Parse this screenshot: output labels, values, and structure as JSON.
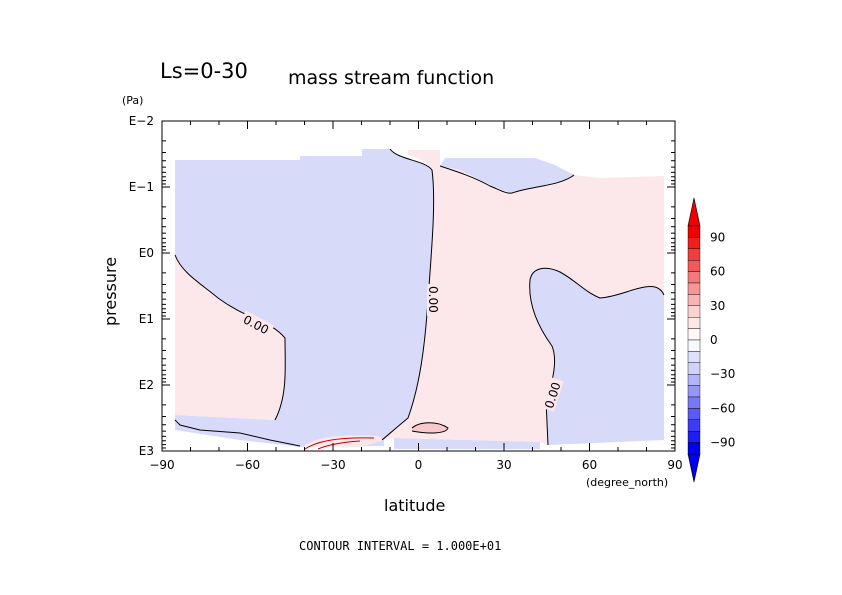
{
  "chart_data": {
    "type": "contour",
    "title_left": "Ls=0-30",
    "title": "mass stream function",
    "xlabel": "latitude",
    "x_unit": "(degree_north)",
    "ylabel": "pressure",
    "y_unit": "(Pa)",
    "x_ticks": [
      -90,
      -60,
      -30,
      0,
      30,
      60,
      90
    ],
    "x_tick_labels": [
      "−90",
      "−60",
      "−30",
      "0",
      "30",
      "60",
      "90"
    ],
    "xlim": [
      -90,
      90
    ],
    "y_scale": "log",
    "y_ticks": [
      0.01,
      0.1,
      1,
      10,
      100,
      1000
    ],
    "y_tick_labels": [
      "E−2",
      "E−1",
      "E0",
      "E1",
      "E2",
      "E3"
    ],
    "ylim": [
      0.01,
      1000
    ],
    "y_direction": "increasing-down",
    "contour_labels": [
      "0.00",
      "0.00",
      "0.00"
    ],
    "contour_interval_text": "CONTOUR INTERVAL = 1.000E+01",
    "colorbar": {
      "labels": [
        "90",
        "60",
        "30",
        "0",
        "−30",
        "−60",
        "−90"
      ],
      "levels": [
        -100,
        -90,
        -80,
        -70,
        -60,
        -50,
        -40,
        -30,
        -20,
        -10,
        0,
        10,
        20,
        30,
        40,
        50,
        60,
        70,
        80,
        90,
        100
      ],
      "negative_colors": [
        "#0000f0",
        "#1e1ef2",
        "#3c3cf4",
        "#5a5af5",
        "#7878f7",
        "#9696f8",
        "#b4b4fa",
        "#d2d2fb",
        "#e0e0fd",
        "#f8f8ff"
      ],
      "positive_colors": [
        "#fff8f8",
        "#fde8e8",
        "#fbd2d2",
        "#fab4b4",
        "#f89696",
        "#f77878",
        "#f55a5a",
        "#f43c3c",
        "#f21e1e",
        "#f00000"
      ]
    },
    "fill_colors": {
      "negative": "#d8dafa",
      "positive": "#fce8ea"
    }
  }
}
